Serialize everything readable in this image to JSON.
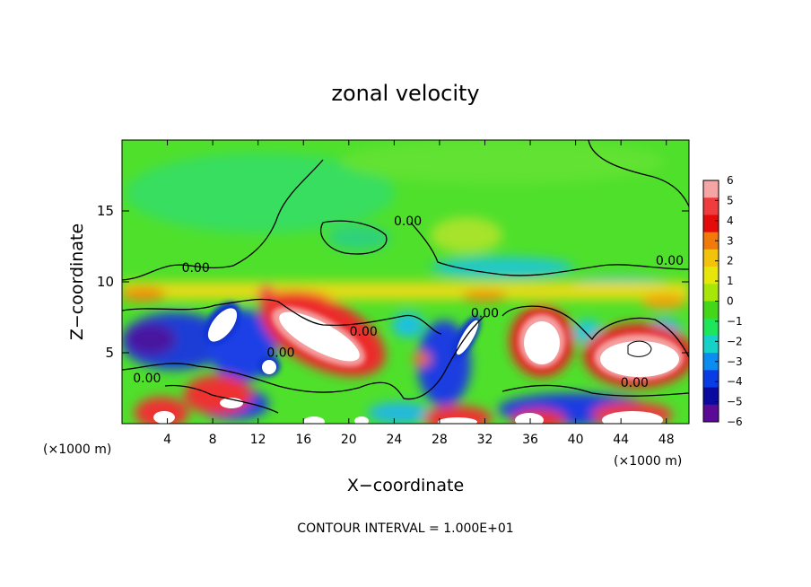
{
  "chart_data": {
    "type": "heatmap",
    "title": "zonal velocity",
    "xlabel": "X−coordinate",
    "ylabel": "Z−coordinate",
    "x_unit_left": "(×1000 m)",
    "x_unit_right": "(×1000 m)",
    "xlim": [
      0,
      50
    ],
    "ylim": [
      0,
      20
    ],
    "x_ticks": [
      4,
      8,
      12,
      16,
      20,
      24,
      28,
      32,
      36,
      40,
      44,
      48
    ],
    "y_ticks": [
      5,
      10,
      15
    ],
    "colorbar": {
      "min": -6,
      "max": 6,
      "ticks": [
        "6",
        "5",
        "4",
        "3",
        "2",
        "1",
        "0",
        "−1",
        "−2",
        "−3",
        "−4",
        "−5",
        "−6"
      ],
      "colors": [
        "#f6a5a5",
        "#f03c3c",
        "#e60b0b",
        "#f27a0a",
        "#f3c30b",
        "#e6e60a",
        "#a8e60a",
        "#44d618",
        "#1ee65a",
        "#14d2c8",
        "#0a8cf0",
        "#0a3ce6",
        "#0a0aa0",
        "#5a0a96"
      ]
    },
    "contour_labels": [
      {
        "text": "0.00",
        "x": 6.5,
        "z": 10.7
      },
      {
        "text": "0.00",
        "x": 25.2,
        "z": 14.0
      },
      {
        "text": "0.00",
        "x": 48.3,
        "z": 11.2
      },
      {
        "text": "0.00",
        "x": 32.0,
        "z": 7.5
      },
      {
        "text": "0.00",
        "x": 21.3,
        "z": 6.2
      },
      {
        "text": "0.00",
        "x": 14.0,
        "z": 4.7
      },
      {
        "text": "0.00",
        "x": 2.2,
        "z": 2.9
      },
      {
        "text": "0.00",
        "x": 45.2,
        "z": 2.6
      }
    ],
    "contour_interval_text": "CONTOUR INTERVAL = 1.000E+01"
  }
}
